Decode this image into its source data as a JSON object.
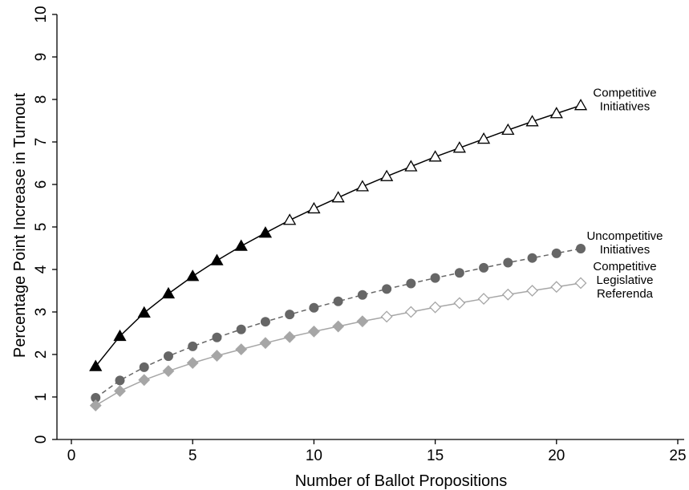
{
  "chart_data": {
    "type": "line",
    "title": "",
    "xlabel": "Number of Ballot Propositions",
    "ylabel": "Percentage Point Increase in Turnout",
    "xlim": [
      0,
      25
    ],
    "ylim": [
      0,
      10
    ],
    "xticks": [
      0,
      5,
      10,
      15,
      20,
      25
    ],
    "yticks": [
      0,
      1,
      2,
      3,
      4,
      5,
      6,
      7,
      8,
      9,
      10
    ],
    "grid": false,
    "legend": "none (series labeled at right end of lines)",
    "x": [
      1,
      2,
      3,
      4,
      5,
      6,
      7,
      8,
      9,
      10,
      11,
      12,
      13,
      14,
      15,
      16,
      17,
      18,
      19,
      20,
      21
    ],
    "series": [
      {
        "name": "Competitive Initiatives",
        "label_lines": [
          "Competitive",
          "Initiatives"
        ],
        "color": "#000000",
        "line_style": "solid",
        "marker": "triangle",
        "filled_through_x": 8,
        "values": [
          1.72,
          2.43,
          2.98,
          3.43,
          3.84,
          4.21,
          4.55,
          4.86,
          5.16,
          5.43,
          5.69,
          5.95,
          6.19,
          6.42,
          6.65,
          6.86,
          7.07,
          7.28,
          7.48,
          7.67,
          7.86
        ]
      },
      {
        "name": "Uncompetitive Initiatives",
        "label_lines": [
          "Uncompetitive",
          "Initiatives"
        ],
        "color": "#666666",
        "line_style": "dashed",
        "marker": "circle",
        "filled_through_x": 21,
        "values": [
          0.98,
          1.39,
          1.7,
          1.96,
          2.19,
          2.4,
          2.59,
          2.77,
          2.94,
          3.1,
          3.25,
          3.4,
          3.54,
          3.67,
          3.8,
          3.92,
          4.04,
          4.16,
          4.27,
          4.38,
          4.49
        ]
      },
      {
        "name": "Competitive Legislative Referenda",
        "label_lines": [
          "Competitive",
          "Legislative",
          "Referenda"
        ],
        "color": "#a6a6a6",
        "line_style": "solid",
        "marker": "diamond",
        "filled_through_x": 12,
        "values": [
          0.8,
          1.14,
          1.4,
          1.61,
          1.8,
          1.97,
          2.12,
          2.27,
          2.41,
          2.54,
          2.66,
          2.78,
          2.89,
          3.0,
          3.11,
          3.21,
          3.31,
          3.41,
          3.5,
          3.59,
          3.68
        ]
      }
    ]
  }
}
